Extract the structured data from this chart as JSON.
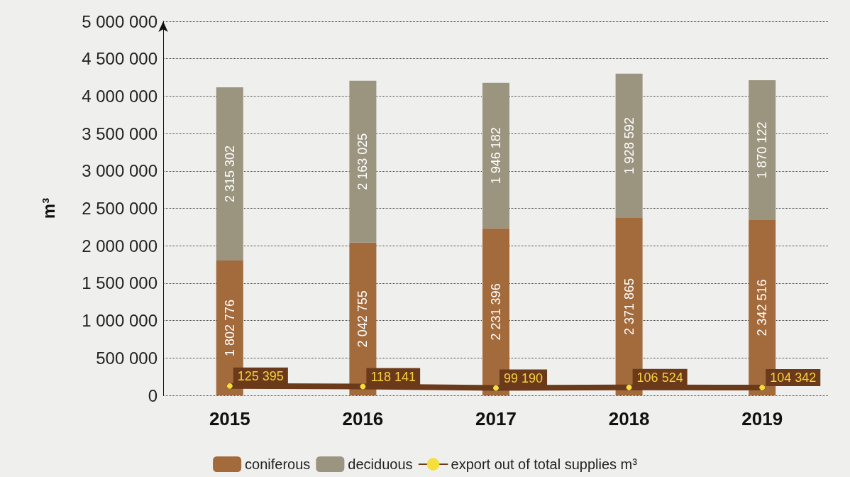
{
  "chart_data": {
    "type": "bar",
    "stacked": true,
    "ylabel": "m³",
    "categories": [
      "2015",
      "2016",
      "2017",
      "2018",
      "2019"
    ],
    "series": [
      {
        "name": "coniferous",
        "color": "#a36a3c",
        "values": [
          1802776,
          2042755,
          2231396,
          2371865,
          2342516
        ],
        "value_labels": [
          "1 802 776",
          "2 042 755",
          "2 231 396",
          "2 371 865",
          "2 342 516"
        ]
      },
      {
        "name": "deciduous",
        "color": "#9b9580",
        "values": [
          2315302,
          2163025,
          1946182,
          1928592,
          1870122
        ],
        "value_labels": [
          "2 315 302",
          "2 163 025",
          "1 946 182",
          "1 928 592",
          "1 870 122"
        ]
      },
      {
        "name": "export out of total supplies m³",
        "type": "line",
        "color": "#6b3a1a",
        "marker": "circle",
        "values": [
          125395,
          118141,
          99190,
          106524,
          104342
        ],
        "value_labels": [
          "125 395",
          "118 141",
          "99 190",
          "106 524",
          "104 342"
        ]
      }
    ],
    "ylim": [
      0,
      5000000
    ],
    "yticks": [
      {
        "value": 0,
        "label": "0"
      },
      {
        "value": 500000,
        "label": "500 000"
      },
      {
        "value": 1000000,
        "label": "1 000 000"
      },
      {
        "value": 1500000,
        "label": "1 500 000"
      },
      {
        "value": 2000000,
        "label": "2 000 000"
      },
      {
        "value": 2500000,
        "label": "2 500 000"
      },
      {
        "value": 3000000,
        "label": "3 000 000"
      },
      {
        "value": 3500000,
        "label": "3 500 000"
      },
      {
        "value": 4000000,
        "label": "4 000 000"
      },
      {
        "value": 4500000,
        "label": "4 500 000"
      },
      {
        "value": 5000000,
        "label": "5 000 000"
      }
    ],
    "grid": "y",
    "legend": "bottom"
  }
}
